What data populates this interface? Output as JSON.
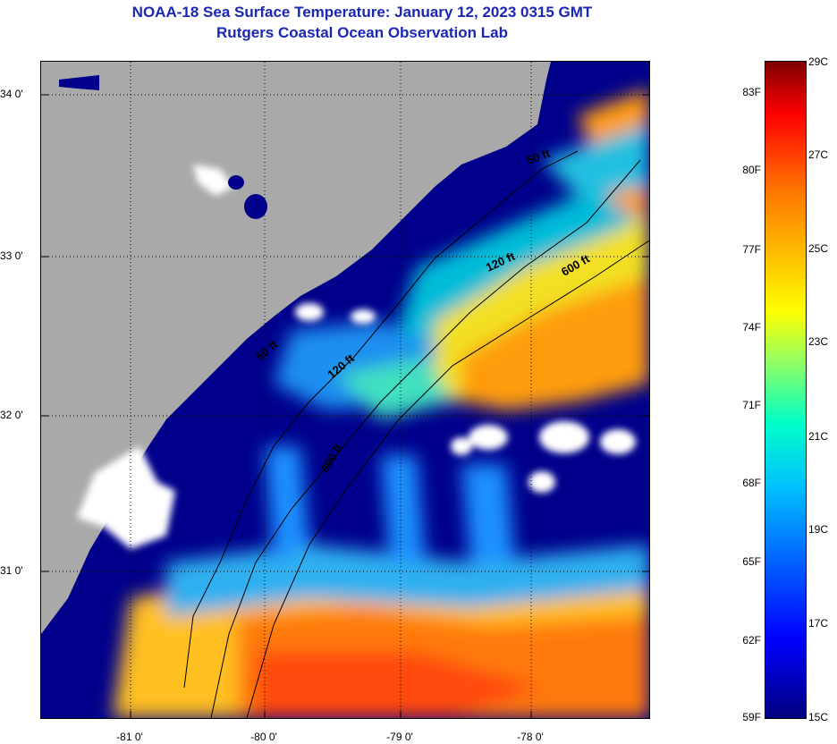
{
  "header": {
    "title": "NOAA-18 Sea Surface Temperature:  January 12, 2023 0315 GMT",
    "subtitle": "Rutgers Coastal Ocean Observation Lab"
  },
  "axes": {
    "lat_ticks": [
      "34 0'",
      "33 0'",
      "32 0'",
      "31 0'"
    ],
    "lon_ticks": [
      "-81 0'",
      "-80 0'",
      "-79 0'",
      "-78 0'"
    ],
    "lat_range": [
      30.15,
      34.27
    ],
    "lon_range": [
      -81.68,
      -77.0
    ]
  },
  "contours": [
    {
      "label": "50 ft"
    },
    {
      "label": "120 ft"
    },
    {
      "label": "600 ft"
    },
    {
      "label": "50 ft"
    },
    {
      "label": "120 ft"
    },
    {
      "label": "600 ft"
    }
  ],
  "colorbar": {
    "celsius_range": [
      15,
      29
    ],
    "fahrenheit_labels": [
      "83F",
      "80F",
      "77F",
      "74F",
      "71F",
      "68F",
      "65F",
      "62F",
      "59F"
    ],
    "celsius_labels": [
      "29C",
      "27C",
      "25C",
      "23C",
      "21C",
      "19C",
      "17C",
      "15C"
    ]
  },
  "colors": {
    "land": "#a9a9a9",
    "cold": "#00008b",
    "warm": "#ff6a00",
    "cloud": "#ffffff",
    "title": "#1a26b5"
  }
}
